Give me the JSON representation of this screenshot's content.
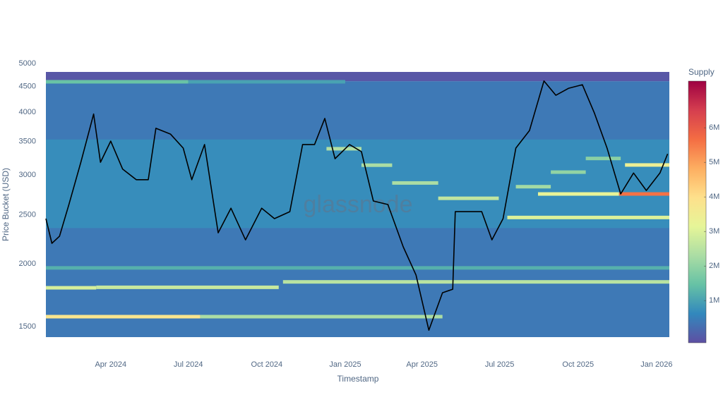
{
  "chart_data": {
    "type": "heatmap",
    "watermark": "glassnode",
    "x_label": "Timestamp",
    "y_label": "Price Bucket (USD)",
    "colorbar_title": "Supply",
    "ylog": true,
    "ylim": [
      1457,
      4903
    ],
    "yticks": [
      1500,
      2000,
      2500,
      3000,
      3500,
      4000,
      4500,
      5000
    ],
    "xlim": [
      "2024-01-16",
      "2026-01-16"
    ],
    "xticks": [
      {
        "value": "2024-04-01",
        "label": "Apr 2024"
      },
      {
        "value": "2024-07-01",
        "label": "Jul 2024"
      },
      {
        "value": "2024-10-01",
        "label": "Oct 2024"
      },
      {
        "value": "2025-01-01",
        "label": "Jan 2025"
      },
      {
        "value": "2025-04-01",
        "label": "Apr 2025"
      },
      {
        "value": "2025-07-01",
        "label": "Jul 2025"
      },
      {
        "value": "2025-10-01",
        "label": "Oct 2025"
      },
      {
        "value": "2026-01-01",
        "label": "Jan 2026"
      }
    ],
    "clim": [
      -220000,
      7350000
    ],
    "cticks": [
      {
        "value": 1000000,
        "label": "1M"
      },
      {
        "value": 2000000,
        "label": "2M"
      },
      {
        "value": 3000000,
        "label": "3M"
      },
      {
        "value": 4000000,
        "label": "4M"
      },
      {
        "value": 5000000,
        "label": "5M"
      },
      {
        "value": 6000000,
        "label": "6M"
      }
    ],
    "colorscale": [
      "#5e4fa2",
      "#3288bd",
      "#66c2a5",
      "#abdda4",
      "#e6f598",
      "#fee08b",
      "#fdae61",
      "#f46d43",
      "#d53e4f",
      "#9e0142"
    ],
    "zones": [
      {
        "low": 1457,
        "high": 4700,
        "supply": 400000
      },
      {
        "low": 4700,
        "high": 4903,
        "supply": -100000
      },
      {
        "low": 2400,
        "high": 3600,
        "supply": 700000
      }
    ],
    "bands": [
      {
        "price": 1600,
        "from": "2024-01-16",
        "to": "2024-07-15",
        "supply": 3800000
      },
      {
        "price": 1600,
        "from": "2024-07-15",
        "to": "2025-04-25",
        "supply": 2300000
      },
      {
        "price": 1826,
        "from": "2024-01-16",
        "to": "2024-03-15",
        "supply": 2900000
      },
      {
        "price": 1830,
        "from": "2024-03-15",
        "to": "2024-10-15",
        "supply": 2700000
      },
      {
        "price": 1876,
        "from": "2024-10-20",
        "to": "2026-01-16",
        "supply": 2500000
      },
      {
        "price": 4687,
        "from": "2024-01-16",
        "to": "2024-07-01",
        "supply": 1500000
      },
      {
        "price": 4687,
        "from": "2024-07-01",
        "to": "2025-01-01",
        "supply": 1000000
      },
      {
        "price": 2805,
        "from": "2025-08-15",
        "to": "2025-11-18",
        "supply": 3200000
      },
      {
        "price": 2805,
        "from": "2025-11-18",
        "to": "2026-01-16",
        "supply": 5600000
      },
      {
        "price": 2519,
        "from": "2025-07-10",
        "to": "2026-01-16",
        "supply": 3000000
      },
      {
        "price": 3203,
        "from": "2025-11-25",
        "to": "2026-01-16",
        "supply": 3400000
      },
      {
        "price": 3450,
        "from": "2024-12-10",
        "to": "2025-01-20",
        "supply": 2400000
      },
      {
        "price": 3200,
        "from": "2025-01-20",
        "to": "2025-02-25",
        "supply": 2300000
      },
      {
        "price": 2950,
        "from": "2025-02-25",
        "to": "2025-04-20",
        "supply": 2300000
      },
      {
        "price": 2750,
        "from": "2025-04-20",
        "to": "2025-06-30",
        "supply": 2600000
      },
      {
        "price": 2900,
        "from": "2025-07-20",
        "to": "2025-08-30",
        "supply": 2200000
      },
      {
        "price": 3100,
        "from": "2025-08-30",
        "to": "2025-10-10",
        "supply": 2000000
      },
      {
        "price": 3300,
        "from": "2025-10-10",
        "to": "2025-11-20",
        "supply": 1900000
      },
      {
        "price": 2000,
        "from": "2024-01-16",
        "to": "2026-01-16",
        "supply": 1200000
      }
    ],
    "price": {
      "color": "#000000",
      "x": [
        "2024-01-16",
        "2024-01-23",
        "2024-02-01",
        "2024-02-12",
        "2024-02-26",
        "2024-03-12",
        "2024-03-20",
        "2024-04-01",
        "2024-04-15",
        "2024-05-01",
        "2024-05-15",
        "2024-05-24",
        "2024-06-10",
        "2024-06-25",
        "2024-07-05",
        "2024-07-20",
        "2024-08-05",
        "2024-08-20",
        "2024-09-06",
        "2024-09-25",
        "2024-10-10",
        "2024-10-28",
        "2024-11-12",
        "2024-11-26",
        "2024-12-08",
        "2024-12-20",
        "2025-01-06",
        "2025-01-20",
        "2025-02-03",
        "2025-02-20",
        "2025-03-10",
        "2025-03-25",
        "2025-04-09",
        "2025-04-25",
        "2025-05-07",
        "2025-05-10",
        "2025-05-25",
        "2025-06-10",
        "2025-06-22",
        "2025-07-05",
        "2025-07-20",
        "2025-08-05",
        "2025-08-22",
        "2025-09-05",
        "2025-09-20",
        "2025-10-06",
        "2025-10-20",
        "2025-11-04",
        "2025-11-20",
        "2025-12-05",
        "2025-12-20",
        "2026-01-05",
        "2026-01-14"
      ],
      "values": [
        2506,
        2238,
        2312,
        2673,
        3243,
        4044,
        3243,
        3573,
        3143,
        2994,
        2994,
        3788,
        3690,
        3460,
        2994,
        3518,
        2348,
        2628,
        2274,
        2628,
        2506,
        2587,
        3518,
        3518,
        3964,
        3297,
        3518,
        3405,
        2716,
        2673,
        2202,
        1936,
        1504,
        1785,
        1814,
        2587,
        2587,
        2587,
        2274,
        2506,
        3460,
        3750,
        4704,
        4406,
        4551,
        4625,
        4067,
        3460,
        2805,
        3088,
        2850,
        3088,
        3370
      ]
    }
  }
}
